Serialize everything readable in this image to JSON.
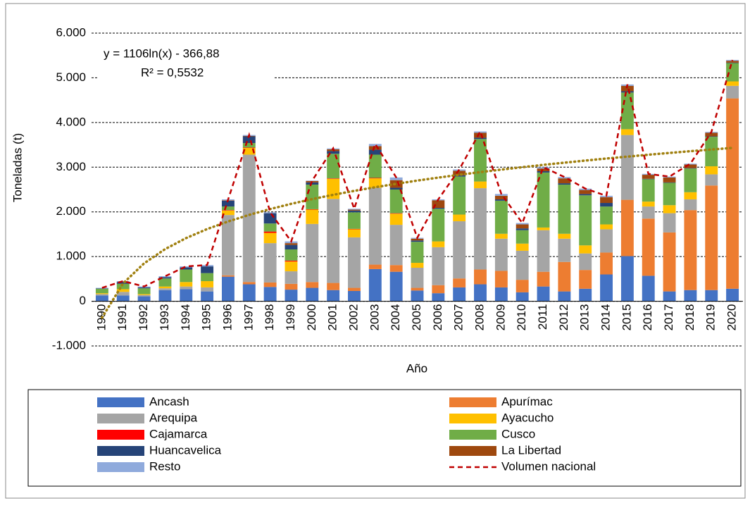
{
  "chart_data": {
    "type": "bar",
    "stacked": true,
    "y_label": "Toneladas (t)",
    "x_label": "Año",
    "categories": [
      "1990",
      "1991",
      "1992",
      "1993",
      "1994",
      "1995",
      "1996",
      "1997",
      "1998",
      "1999",
      "2000",
      "2001",
      "2002",
      "2003",
      "2004",
      "2005",
      "2006",
      "2007",
      "2008",
      "2009",
      "2010",
      "2011",
      "2012",
      "2013",
      "2014",
      "2015",
      "2016",
      "2017",
      "2018",
      "2019",
      "2020"
    ],
    "ylim": [
      -1000,
      6000
    ],
    "yticks": [
      {
        "value": -1000,
        "label": "-1.000"
      },
      0,
      {
        "value": 1000,
        "label": "1.000"
      },
      {
        "value": 2000,
        "label": "2.000"
      },
      {
        "value": 3000,
        "label": "3.000"
      },
      {
        "value": 4000,
        "label": "4.000"
      },
      {
        "value": 5000,
        "label": "5.000"
      },
      {
        "value": 6000,
        "label": "6.000"
      }
    ],
    "grid": true,
    "series": [
      {
        "name": "Ancash",
        "color": "#4472c4",
        "values": [
          130,
          130,
          110,
          250,
          270,
          220,
          550,
          380,
          320,
          260,
          300,
          250,
          230,
          720,
          660,
          240,
          180,
          310,
          380,
          310,
          200,
          330,
          220,
          280,
          600,
          1010,
          570,
          220,
          250,
          250,
          280
        ]
      },
      {
        "name": "Apurímac",
        "color": "#ed7d31",
        "values": [
          0,
          0,
          0,
          0,
          0,
          0,
          30,
          50,
          100,
          130,
          130,
          160,
          70,
          100,
          150,
          60,
          180,
          200,
          330,
          370,
          280,
          330,
          660,
          420,
          490,
          1260,
          1280,
          1320,
          1790,
          2340,
          4260
        ]
      },
      {
        "name": "Arequipa",
        "color": "#a5a5a5",
        "values": [
          30,
          80,
          30,
          40,
          60,
          90,
          1350,
          2850,
          880,
          280,
          1300,
          1880,
          1130,
          1720,
          900,
          450,
          850,
          1280,
          1820,
          720,
          650,
          930,
          520,
          370,
          520,
          1450,
          270,
          430,
          240,
          250,
          280
        ]
      },
      {
        "name": "Ayacucho",
        "color": "#ffc000",
        "values": [
          20,
          60,
          20,
          40,
          100,
          140,
          100,
          150,
          230,
          220,
          320,
          450,
          180,
          210,
          250,
          110,
          130,
          150,
          150,
          110,
          160,
          60,
          110,
          180,
          110,
          130,
          110,
          180,
          160,
          180,
          100
        ]
      },
      {
        "name": "Cajamarca",
        "color": "#ff0000",
        "values": [
          0,
          0,
          0,
          0,
          0,
          0,
          10,
          10,
          30,
          20,
          10,
          10,
          10,
          10,
          10,
          0,
          0,
          0,
          0,
          0,
          0,
          0,
          0,
          0,
          0,
          0,
          0,
          0,
          0,
          0,
          0
        ]
      },
      {
        "name": "Cusco",
        "color": "#70ad47",
        "values": [
          100,
          120,
          130,
          180,
          280,
          180,
          80,
          100,
          180,
          250,
          550,
          550,
          370,
          520,
          530,
          470,
          730,
          850,
          950,
          740,
          300,
          1230,
          1100,
          1120,
          400,
          820,
          500,
          500,
          530,
          660,
          410
        ]
      },
      {
        "name": "Huancavelica",
        "color": "#264478",
        "values": [
          10,
          40,
          20,
          30,
          50,
          150,
          130,
          150,
          230,
          100,
          50,
          60,
          40,
          110,
          40,
          30,
          20,
          30,
          30,
          30,
          40,
          30,
          30,
          30,
          80,
          30,
          10,
          10,
          10,
          10,
          10
        ]
      },
      {
        "name": "La Libertad",
        "color": "#9e480e",
        "values": [
          0,
          0,
          0,
          0,
          0,
          0,
          10,
          10,
          0,
          40,
          30,
          40,
          20,
          80,
          170,
          40,
          170,
          100,
          110,
          80,
          90,
          60,
          110,
          90,
          130,
          120,
          90,
          110,
          80,
          80,
          40
        ]
      },
      {
        "name": "Resto",
        "color": "#8faadc",
        "values": [
          10,
          20,
          20,
          20,
          20,
          30,
          20,
          20,
          20,
          40,
          10,
          20,
          20,
          50,
          60,
          20,
          20,
          30,
          30,
          40,
          30,
          30,
          30,
          30,
          30,
          30,
          20,
          20,
          20,
          20,
          20
        ]
      }
    ],
    "line": {
      "name": "Volumen nacional",
      "color": "#c00000",
      "values": [
        300,
        450,
        330,
        560,
        780,
        810,
        2280,
        3720,
        1990,
        1340,
        2700,
        3420,
        2070,
        3520,
        2770,
        1420,
        2280,
        2950,
        3800,
        2400,
        1750,
        3000,
        2780,
        2520,
        2360,
        4850,
        2850,
        2790,
        3080,
        3790,
        5400
      ]
    },
    "trendline": {
      "label": "y = 1106ln(x) - 366,88",
      "r2_label": "R² = 0,5532",
      "a": 1106,
      "b": -366.88,
      "color": "#a08010"
    }
  }
}
